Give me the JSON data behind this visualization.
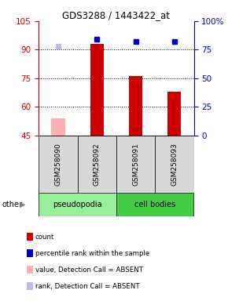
{
  "title": "GDS3288 / 1443422_at",
  "samples": [
    "GSM258090",
    "GSM258092",
    "GSM258091",
    "GSM258093"
  ],
  "bar_values": [
    54,
    93,
    76,
    68
  ],
  "bar_colors": [
    "#ffb0b0",
    "#cc0000",
    "#cc0000",
    "#cc0000"
  ],
  "rank_values": [
    null,
    84,
    82,
    82
  ],
  "rank_absent": [
    78,
    null,
    null,
    null
  ],
  "ylim_left": [
    45,
    105
  ],
  "ylim_right": [
    0,
    100
  ],
  "yticks_left": [
    45,
    60,
    75,
    90,
    105
  ],
  "yticks_right": [
    0,
    25,
    50,
    75,
    100
  ],
  "groups": [
    {
      "label": "pseudopodia",
      "color": "#99ee99",
      "cols": [
        0,
        1
      ]
    },
    {
      "label": "cell bodies",
      "color": "#44cc44",
      "cols": [
        2,
        3
      ]
    }
  ],
  "left_axis_color": "#cc0000",
  "right_axis_color": "#0000cc",
  "bar_width": 0.35,
  "legend_items": [
    {
      "color": "#cc0000",
      "label": "count"
    },
    {
      "color": "#0000cc",
      "label": "percentile rank within the sample"
    },
    {
      "color": "#ffb0b0",
      "label": "value, Detection Call = ABSENT"
    },
    {
      "color": "#bbbbee",
      "label": "rank, Detection Call = ABSENT"
    }
  ],
  "grid_lines": [
    60,
    75,
    90
  ],
  "fig_width": 2.9,
  "fig_height": 3.84,
  "dpi": 100
}
